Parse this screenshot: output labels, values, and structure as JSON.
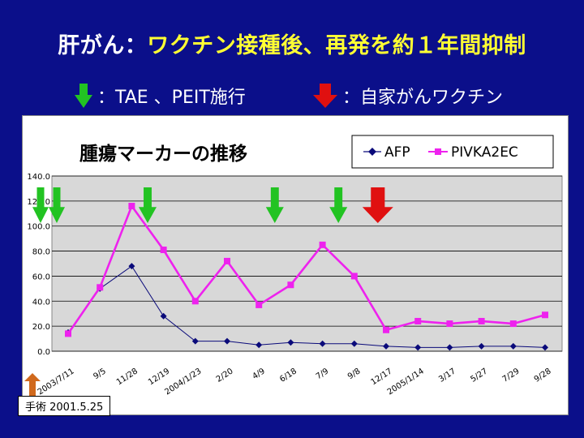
{
  "slide": {
    "title_main": "肝がん：",
    "title_highlight": "ワクチン接種後、再発を約１年間抑制",
    "legend_green": "：TAE 、PEIT施行",
    "legend_red": "：自家がんワクチン",
    "surgery_label": "手術 2001.5.25"
  },
  "colors": {
    "background": "#0b0f8a",
    "green_arrow": "#22c322",
    "red_arrow": "#e01010",
    "surgery_arrow": "#d0691d",
    "afp": "#0a0a7a",
    "pivka": "#ee22ee",
    "plot_bg": "#d8d8d8"
  },
  "chart_data": {
    "type": "line",
    "title": "腫瘍マーカーの推移",
    "legend_position": "top-right",
    "grid": true,
    "ylim": [
      0,
      140
    ],
    "yticks": [
      "0.0",
      "20.0",
      "40.0",
      "60.0",
      "80.0",
      "100.0",
      "120.0",
      "140.0"
    ],
    "categories": [
      "2003/7/11",
      "9/5",
      "11/28",
      "12/19",
      "2004/1/23",
      "2/20",
      "4/9",
      "6/18",
      "7/9",
      "9/8",
      "12/17",
      "2005/1/14",
      "3/17",
      "5/27",
      "7/29",
      "9/28"
    ],
    "series": [
      {
        "name": "AFP",
        "marker": "diamond",
        "values": [
          15,
          50,
          68,
          28,
          8,
          8,
          5,
          7,
          6,
          6,
          4,
          3,
          3,
          4,
          4,
          3
        ]
      },
      {
        "name": "PIVKA2EC",
        "marker": "square",
        "values": [
          14,
          51,
          116,
          81,
          40,
          72,
          37,
          53,
          85,
          60,
          17,
          24,
          22,
          24,
          22,
          29
        ]
      }
    ],
    "green_arrows_after": [
      0,
      2,
      6,
      8
    ],
    "red_arrow_at": 9
  }
}
